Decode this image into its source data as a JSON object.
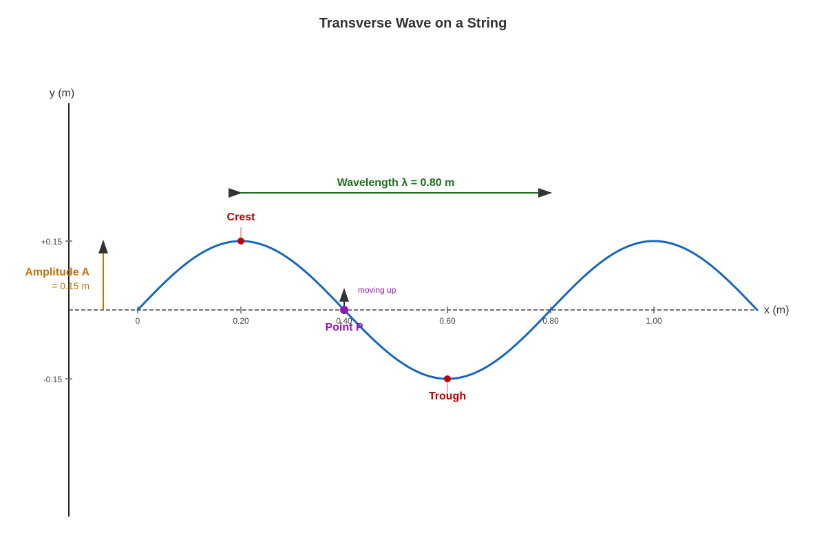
{
  "title": "Transverse Wave on a String",
  "axes": {
    "x_label": "x (m)",
    "y_label": "y (m)",
    "x_ticks": [
      "0",
      "0.20",
      "0.40",
      "0.60",
      "0.80",
      "1.00"
    ],
    "y_ticks": [
      "+0.15",
      "-0.15"
    ]
  },
  "wave": {
    "amplitude_m": 0.15,
    "wavelength_m": 0.8,
    "x_start_m": 0,
    "x_end_m": 1.2
  },
  "labels": {
    "wavelength": "Wavelength λ = 0.80 m",
    "crest": "Crest",
    "trough": "Trough",
    "amplitude_title": "Amplitude A",
    "amplitude_value": "= 0.15 m",
    "point_p": "Point P",
    "moving_up": "moving up"
  },
  "colors": {
    "wave": "#1565c0",
    "axis": "#222222",
    "text": "#333333",
    "wavelength": "#1b6e1b",
    "crest_trough": "#c00000",
    "amplitude": "#c0720a",
    "point_p": "#8e18b3",
    "arrow": "#333333"
  }
}
